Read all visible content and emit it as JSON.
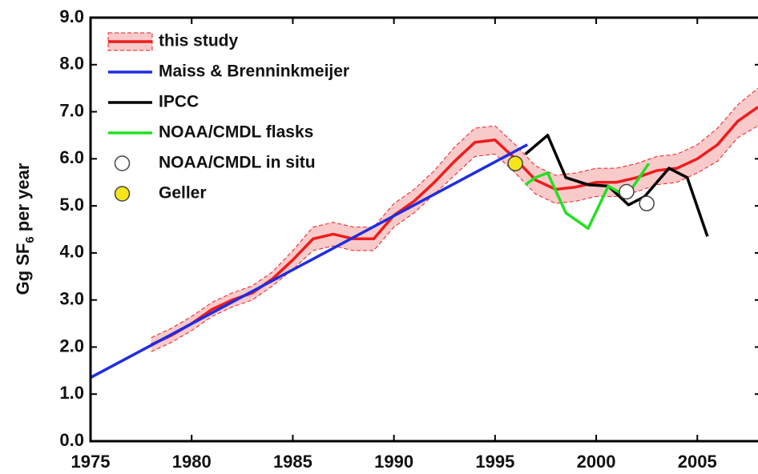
{
  "chart_data": {
    "type": "line",
    "ylabel_parts": [
      "Gg SF",
      "6",
      " per year"
    ],
    "xlim": [
      1975,
      2008
    ],
    "ylim": [
      0,
      9
    ],
    "xticks": [
      1975,
      1980,
      1985,
      1990,
      1995,
      2000,
      2005
    ],
    "yticks": [
      {
        "value": 0,
        "label": "0.0"
      },
      {
        "value": 1,
        "label": "1.0"
      },
      {
        "value": 2,
        "label": "2.0"
      },
      {
        "value": 3,
        "label": "3.0"
      },
      {
        "value": 4,
        "label": "4.0"
      },
      {
        "value": 5,
        "label": "5.0"
      },
      {
        "value": 6,
        "label": "6.0"
      },
      {
        "value": 7,
        "label": "7.0"
      },
      {
        "value": 8,
        "label": "8.0"
      },
      {
        "value": 9,
        "label": "9.0"
      }
    ],
    "legend": "upper left",
    "series": [
      {
        "name": "this study",
        "style": "band-line",
        "color": "#ee1c1c",
        "band_color": "#f9caca",
        "x": [
          1978,
          1979,
          1980,
          1981,
          1982,
          1983,
          1984,
          1985,
          1986,
          1987,
          1988,
          1989,
          1990,
          1991,
          1992,
          1993,
          1994,
          1995,
          1996,
          1997,
          1998,
          1999,
          2000,
          2001,
          2002,
          2003,
          2004,
          2005,
          2006,
          2007,
          2008
        ],
        "values": [
          2.05,
          2.25,
          2.5,
          2.8,
          3.0,
          3.15,
          3.45,
          3.85,
          4.3,
          4.4,
          4.3,
          4.3,
          4.8,
          5.1,
          5.5,
          5.95,
          6.35,
          6.4,
          6.0,
          5.55,
          5.35,
          5.4,
          5.5,
          5.5,
          5.6,
          5.75,
          5.8,
          6.0,
          6.3,
          6.8,
          7.1
        ],
        "lower": [
          1.9,
          2.1,
          2.35,
          2.65,
          2.85,
          3.0,
          3.3,
          3.65,
          4.05,
          4.15,
          4.05,
          4.05,
          4.55,
          4.85,
          5.25,
          5.65,
          6.05,
          6.1,
          5.7,
          5.25,
          5.05,
          5.1,
          5.2,
          5.2,
          5.3,
          5.45,
          5.5,
          5.7,
          5.95,
          6.45,
          6.7
        ],
        "upper": [
          2.2,
          2.4,
          2.65,
          2.95,
          3.15,
          3.3,
          3.6,
          4.05,
          4.55,
          4.65,
          4.55,
          4.55,
          5.05,
          5.35,
          5.75,
          6.25,
          6.65,
          6.7,
          6.3,
          5.85,
          5.65,
          5.7,
          5.8,
          5.8,
          5.9,
          6.05,
          6.1,
          6.3,
          6.65,
          7.15,
          7.5
        ]
      },
      {
        "name": "Maiss & Brenninkmeijer",
        "style": "line",
        "color": "#1f2de0",
        "x": [
          1975,
          1996.6
        ],
        "values": [
          1.35,
          6.3
        ]
      },
      {
        "name": "IPCC",
        "style": "line",
        "color": "#000000",
        "x": [
          1996.5,
          1997.6,
          1998.5,
          1999.6,
          2000.6,
          2001.6,
          2002.4,
          2003.6,
          2004.5,
          2005.5
        ],
        "values": [
          6.1,
          6.5,
          5.6,
          5.45,
          5.42,
          5.02,
          5.2,
          5.8,
          5.6,
          4.35
        ]
      },
      {
        "name": "NOAA/CMDL flasks",
        "style": "line",
        "color": "#22e022",
        "x": [
          1996.5,
          1997,
          1997.6,
          1998.5,
          1999.6,
          2000.6,
          2001.5,
          2002.6
        ],
        "values": [
          5.45,
          5.6,
          5.7,
          4.85,
          4.52,
          5.42,
          5.2,
          5.9
        ]
      },
      {
        "name": "NOAA/CMDL in situ",
        "style": "marker",
        "color": "#ffffff",
        "x": [
          2001.5,
          2002.5
        ],
        "values": [
          5.3,
          5.05
        ]
      },
      {
        "name": "Geller",
        "style": "marker",
        "color": "#f5e51a",
        "x": [
          1996
        ],
        "values": [
          5.9
        ]
      }
    ]
  }
}
